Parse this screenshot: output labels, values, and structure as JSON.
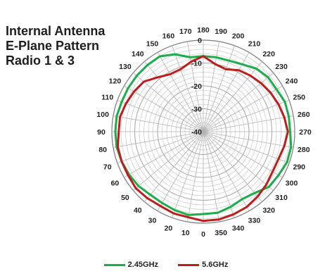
{
  "title": "Internal Antenna\nE-Plane Pattern\nRadio 1 & 3",
  "chart_data": {
    "type": "polar-line",
    "angle_direction": "clockwise",
    "angle_zero_position": "bottom",
    "angle_ticks": [
      0,
      10,
      20,
      30,
      40,
      50,
      60,
      70,
      80,
      90,
      100,
      110,
      120,
      130,
      140,
      150,
      160,
      170,
      180,
      190,
      200,
      210,
      220,
      230,
      240,
      250,
      260,
      270,
      280,
      290,
      300,
      310,
      320,
      330,
      340,
      350
    ],
    "radial_range": [
      -40,
      0
    ],
    "radial_ticks": [
      0,
      -10,
      -20,
      -30,
      -40
    ],
    "grid": true,
    "legend_position": "bottom",
    "series": [
      {
        "name": "2.45GHz",
        "color": "#1aae4a",
        "points": [
          [
            0,
            -4
          ],
          [
            10,
            -3
          ],
          [
            20,
            -3.5
          ],
          [
            30,
            -4
          ],
          [
            40,
            -4
          ],
          [
            50,
            -3
          ],
          [
            60,
            -2.5
          ],
          [
            70,
            -2
          ],
          [
            80,
            -1.5
          ],
          [
            90,
            -1.5
          ],
          [
            100,
            -1.5
          ],
          [
            110,
            -2
          ],
          [
            120,
            -2
          ],
          [
            130,
            -2
          ],
          [
            140,
            -2
          ],
          [
            150,
            -2
          ],
          [
            160,
            -4
          ],
          [
            170,
            -7
          ],
          [
            180,
            -7
          ],
          [
            190,
            -7
          ],
          [
            200,
            -7
          ],
          [
            210,
            -6
          ],
          [
            220,
            -4
          ],
          [
            230,
            -3
          ],
          [
            240,
            -3
          ],
          [
            250,
            -2
          ],
          [
            260,
            -2
          ],
          [
            270,
            -2
          ],
          [
            280,
            -1
          ],
          [
            290,
            -1
          ],
          [
            300,
            -2
          ],
          [
            310,
            -2.5
          ],
          [
            320,
            -5
          ],
          [
            330,
            -6
          ],
          [
            340,
            -5
          ],
          [
            350,
            -4
          ]
        ]
      },
      {
        "name": "5.6GHz",
        "color": "#bf1c1c",
        "points": [
          [
            0,
            -1
          ],
          [
            10,
            -2
          ],
          [
            20,
            -2
          ],
          [
            30,
            -2.5
          ],
          [
            40,
            -2
          ],
          [
            50,
            -1.5
          ],
          [
            60,
            -2
          ],
          [
            70,
            -2
          ],
          [
            80,
            -2
          ],
          [
            90,
            -3
          ],
          [
            100,
            -3
          ],
          [
            110,
            -4
          ],
          [
            120,
            -5
          ],
          [
            130,
            -6
          ],
          [
            140,
            -9
          ],
          [
            150,
            -11
          ],
          [
            160,
            -11
          ],
          [
            170,
            -9
          ],
          [
            180,
            -7
          ],
          [
            190,
            -10
          ],
          [
            200,
            -11
          ],
          [
            210,
            -9
          ],
          [
            220,
            -8
          ],
          [
            230,
            -7
          ],
          [
            240,
            -6
          ],
          [
            250,
            -5
          ],
          [
            260,
            -4
          ],
          [
            270,
            -3
          ],
          [
            280,
            -4
          ],
          [
            290,
            -5
          ],
          [
            300,
            -5
          ],
          [
            310,
            -4
          ],
          [
            320,
            -3
          ],
          [
            330,
            -2
          ],
          [
            340,
            -1.5
          ],
          [
            350,
            -1
          ]
        ]
      }
    ]
  }
}
